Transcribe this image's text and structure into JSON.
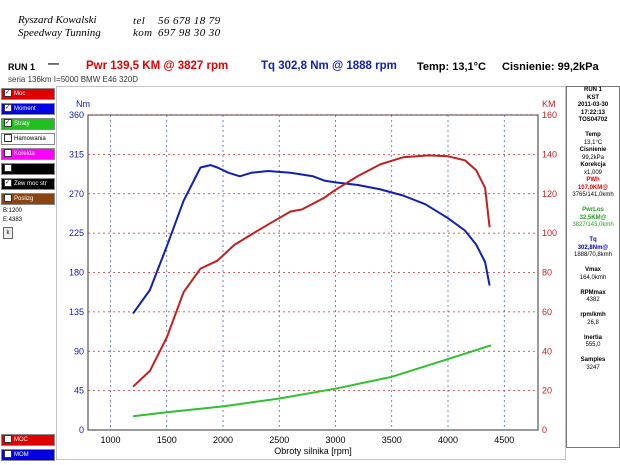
{
  "header": {
    "name_line1": "Ryszard Kowalski",
    "name_line2": "Speedway Tunning",
    "tel_label": "tel",
    "tel_value": "56 678 18 79",
    "kom_label": "kom",
    "kom_value": "697 98 30 30"
  },
  "run": {
    "label": "RUN 1",
    "line_symbol": "—",
    "pwr_text": "Pwr 139,5 KM @ 3827 rpm",
    "tq_text": "Tq 302,8 Nm @ 1888 rpm",
    "temp_text": "Temp: 13,1°C",
    "pressure_text": "Cisnienie: 99,2kPa",
    "series_text": "seria 136km I=5000 BMW E46 320D"
  },
  "left_panel": {
    "items": [
      {
        "label": "Moc",
        "checked": true,
        "color": "#e00000"
      },
      {
        "label": "Moment",
        "checked": true,
        "color": "#0000e0"
      },
      {
        "label": "Straty",
        "checked": true,
        "color": "#20c020"
      },
      {
        "label": "Hamowania",
        "checked": false,
        "color": "#ffffff"
      },
      {
        "label": "Korekta",
        "checked": false,
        "color": "#ff00ff"
      },
      {
        "label": "",
        "checked": false,
        "color": "#000000"
      },
      {
        "label": "Zew moc str",
        "checked": true,
        "color": "#000000"
      },
      {
        "label": "Poslizg",
        "checked": false,
        "color": "#8b4513"
      }
    ],
    "b_value": "B:1200",
    "e_value": "E:4383",
    "k_button": "k",
    "bottom_items": [
      {
        "label": "MOC",
        "color": "#e00000"
      },
      {
        "label": "MOM",
        "color": "#0000e0"
      }
    ]
  },
  "right_panel": {
    "lines": [
      {
        "text": "RUN 1",
        "bold": true,
        "color": "#000"
      },
      {
        "text": "KST",
        "bold": true,
        "color": "#000"
      },
      {
        "text": "2011-03-30",
        "bold": true,
        "color": "#000"
      },
      {
        "text": "17:22:13",
        "bold": true,
        "color": "#000"
      },
      {
        "text": "TOS04702",
        "bold": true,
        "color": "#000"
      },
      {
        "text": "",
        "bold": false,
        "color": "#000"
      },
      {
        "text": "Temp",
        "bold": true,
        "color": "#000"
      },
      {
        "text": "13,1°C",
        "bold": false,
        "color": "#000"
      },
      {
        "text": "Cisnienie",
        "bold": true,
        "color": "#000"
      },
      {
        "text": "99,2kPa",
        "bold": false,
        "color": "#000"
      },
      {
        "text": "Korekcja",
        "bold": true,
        "color": "#000"
      },
      {
        "text": "x1,009",
        "bold": false,
        "color": "#000"
      },
      {
        "text": "PWh",
        "bold": true,
        "color": "#e00000"
      },
      {
        "text": "107,0KM@",
        "bold": true,
        "color": "#e00000"
      },
      {
        "text": "3765/141,0kmh",
        "bold": false,
        "color": "#000"
      },
      {
        "text": "",
        "bold": false,
        "color": "#000"
      },
      {
        "text": "PwrLos",
        "bold": true,
        "color": "#20a020"
      },
      {
        "text": "32,5KM@",
        "bold": true,
        "color": "#20a020"
      },
      {
        "text": "3827/143,0kmh",
        "bold": false,
        "color": "#20a020"
      },
      {
        "text": "",
        "bold": false,
        "color": "#000"
      },
      {
        "text": "Tq",
        "bold": true,
        "color": "#0000c0"
      },
      {
        "text": "302,8Nm@",
        "bold": true,
        "color": "#0000c0"
      },
      {
        "text": "1888/70,8kmh",
        "bold": false,
        "color": "#000"
      },
      {
        "text": "",
        "bold": false,
        "color": "#000"
      },
      {
        "text": "Vmax",
        "bold": true,
        "color": "#000"
      },
      {
        "text": "164,0kmh",
        "bold": false,
        "color": "#000"
      },
      {
        "text": "",
        "bold": false,
        "color": "#000"
      },
      {
        "text": "RPMmax",
        "bold": true,
        "color": "#000"
      },
      {
        "text": "4382",
        "bold": false,
        "color": "#000"
      },
      {
        "text": "",
        "bold": false,
        "color": "#000"
      },
      {
        "text": "rpm/kmh",
        "bold": true,
        "color": "#000"
      },
      {
        "text": "26,8",
        "bold": false,
        "color": "#000"
      },
      {
        "text": "",
        "bold": false,
        "color": "#000"
      },
      {
        "text": "Inertia",
        "bold": true,
        "color": "#000"
      },
      {
        "text": "555,0",
        "bold": false,
        "color": "#000"
      },
      {
        "text": "",
        "bold": false,
        "color": "#000"
      },
      {
        "text": "Samples",
        "bold": true,
        "color": "#000"
      },
      {
        "text": "3247",
        "bold": false,
        "color": "#000"
      }
    ]
  },
  "chart_data": {
    "type": "line",
    "xlabel": "Obroty silnika [rpm]",
    "ylabel_left": "Nm",
    "ylabel_right": "KM",
    "xlim": [
      800,
      4800
    ],
    "ylim_left": [
      0,
      360
    ],
    "ylim_right": [
      0,
      160
    ],
    "x_ticks": [
      1000,
      1500,
      2000,
      2500,
      3000,
      3500,
      4000,
      4500
    ],
    "y_left_ticks": [
      0,
      45,
      90,
      135,
      180,
      225,
      270,
      315,
      360
    ],
    "y_right_ticks": [
      0,
      20,
      40,
      60,
      80,
      100,
      120,
      140,
      160
    ],
    "grid": true,
    "series": [
      {
        "color": "#1020b0",
        "axis": "left",
        "points": [
          [
            1200,
            133
          ],
          [
            1350,
            160
          ],
          [
            1500,
            210
          ],
          [
            1650,
            262
          ],
          [
            1800,
            300
          ],
          [
            1888,
            302.8
          ],
          [
            1950,
            300
          ],
          [
            2050,
            294
          ],
          [
            2150,
            290
          ],
          [
            2250,
            294
          ],
          [
            2400,
            296
          ],
          [
            2600,
            294
          ],
          [
            2800,
            290
          ],
          [
            2900,
            285
          ],
          [
            3000,
            283
          ],
          [
            3200,
            280
          ],
          [
            3400,
            275
          ],
          [
            3600,
            268
          ],
          [
            3800,
            258
          ],
          [
            4000,
            242
          ],
          [
            4150,
            228
          ],
          [
            4250,
            212
          ],
          [
            4330,
            192
          ],
          [
            4370,
            165
          ]
        ]
      },
      {
        "color": "#c02020",
        "axis": "right",
        "points": [
          [
            1200,
            22
          ],
          [
            1350,
            30
          ],
          [
            1500,
            47
          ],
          [
            1650,
            70
          ],
          [
            1800,
            82
          ],
          [
            1950,
            86
          ],
          [
            2100,
            94
          ],
          [
            2300,
            101
          ],
          [
            2450,
            106
          ],
          [
            2600,
            111
          ],
          [
            2700,
            112
          ],
          [
            2900,
            118
          ],
          [
            3000,
            122
          ],
          [
            3200,
            129
          ],
          [
            3400,
            135
          ],
          [
            3600,
            138.5
          ],
          [
            3827,
            139.5
          ],
          [
            4000,
            139
          ],
          [
            4150,
            137
          ],
          [
            4250,
            132
          ],
          [
            4330,
            123
          ],
          [
            4370,
            103
          ]
        ]
      },
      {
        "color": "#30c030",
        "axis": "right",
        "points": [
          [
            1200,
            7
          ],
          [
            1500,
            9
          ],
          [
            2000,
            12
          ],
          [
            2500,
            16
          ],
          [
            3000,
            21
          ],
          [
            3500,
            27
          ],
          [
            4000,
            36
          ],
          [
            4383,
            43
          ]
        ]
      }
    ]
  }
}
